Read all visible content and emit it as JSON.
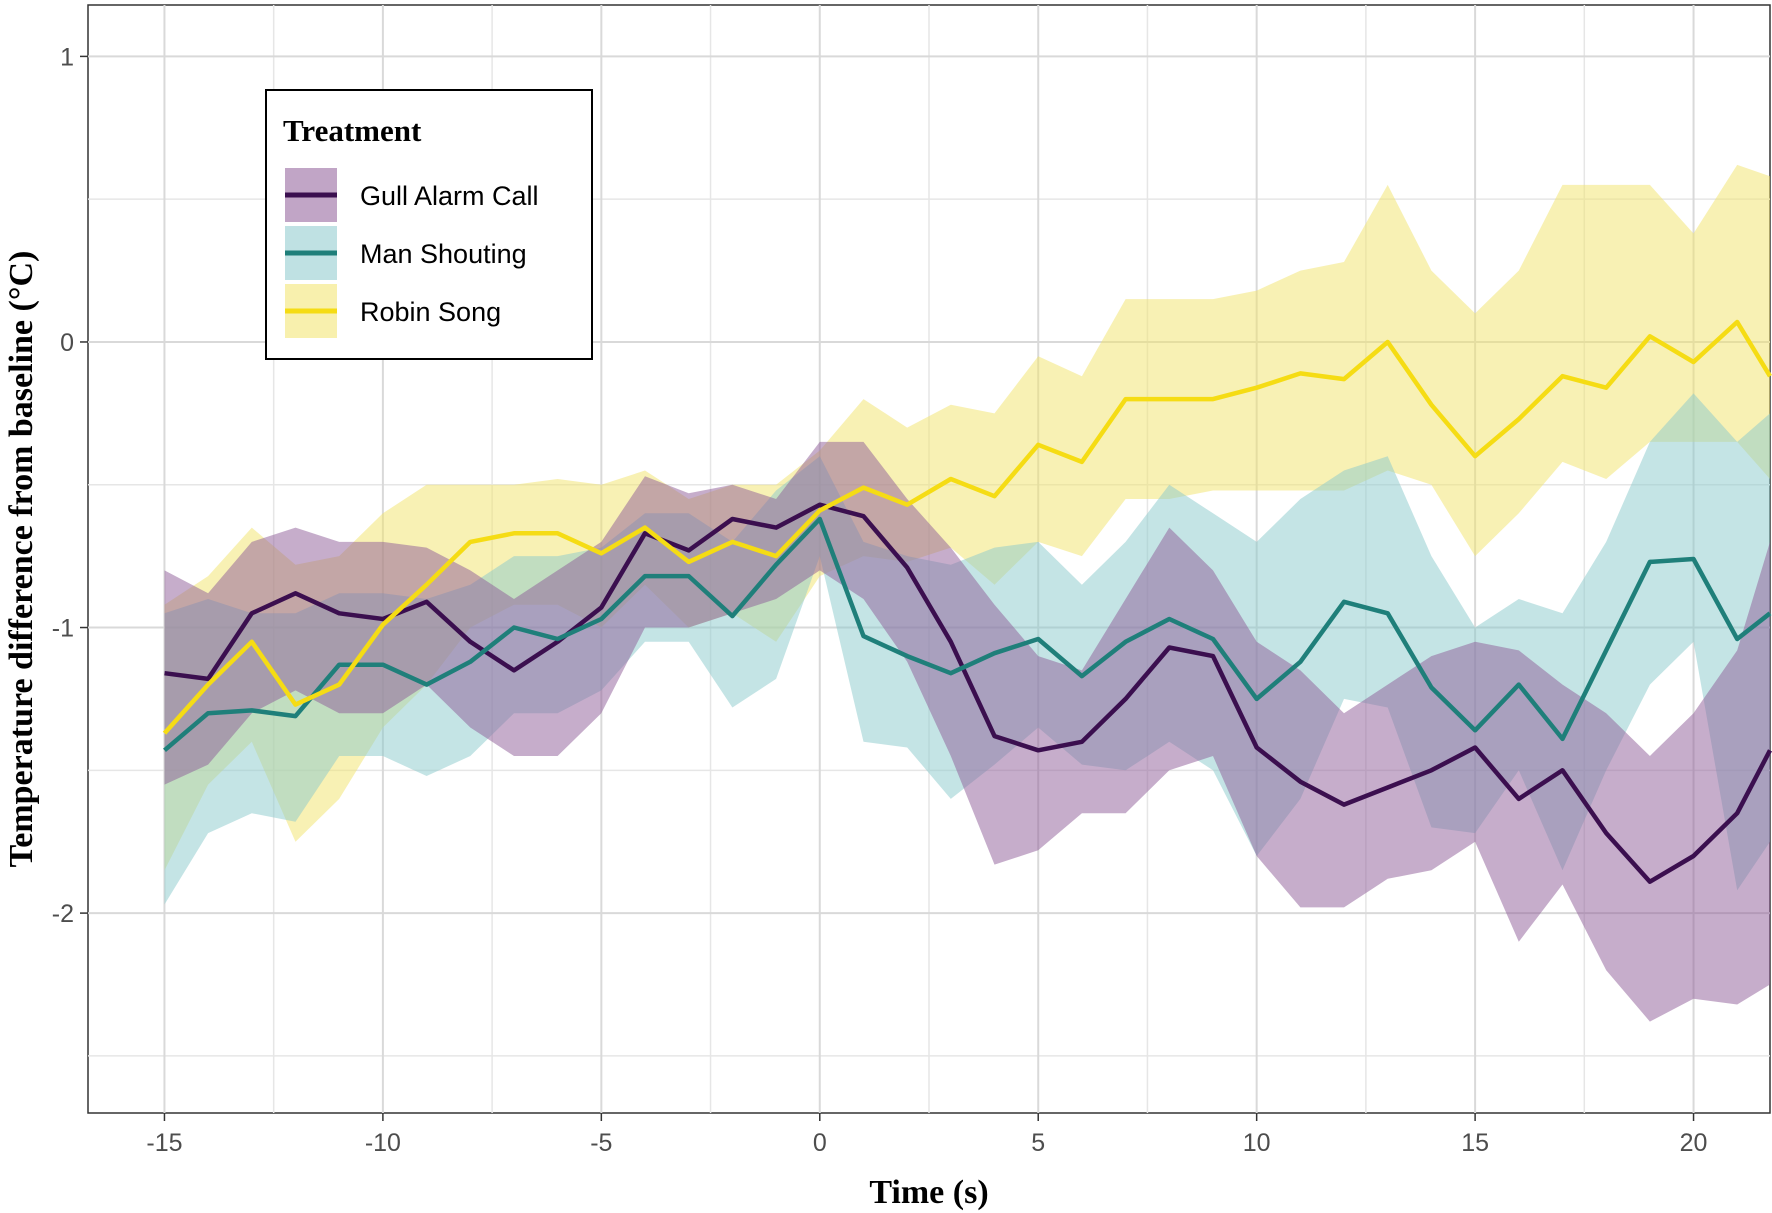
{
  "chart_data": {
    "type": "line",
    "title": "",
    "xlabel": "Time (s)",
    "ylabel": "Temperature difference from baseline (°C)",
    "xlim": [
      -16.75,
      21.75
    ],
    "ylim": [
      -2.7,
      1.18
    ],
    "xticks": [
      -15,
      -10,
      -5,
      0,
      5,
      10,
      15,
      20
    ],
    "xtick_labels": [
      "-15",
      "-10",
      "-5",
      "0",
      "5",
      "10",
      "15",
      "20"
    ],
    "yticks": [
      1,
      0,
      -1,
      -2
    ],
    "ytick_labels": [
      "1",
      "0",
      "-1",
      "-2"
    ],
    "grid": true,
    "legend": {
      "title": "Treatment",
      "position": "top-left"
    },
    "x": [
      -15,
      -14,
      -13,
      -12,
      -11,
      -10,
      -9,
      -8,
      -7,
      -6,
      -5,
      -4,
      -3,
      -2,
      -1,
      0,
      1,
      2,
      3,
      4,
      5,
      6,
      7,
      8,
      9,
      10,
      11,
      12,
      13,
      14,
      15,
      16,
      17,
      18,
      19,
      20,
      21,
      21.75
    ],
    "series": [
      {
        "name": "Gull Alarm Call",
        "color": "#3b0f4f",
        "fill_color": "#8e5b98",
        "values": [
          -1.16,
          -1.18,
          -0.95,
          -0.88,
          -0.95,
          -0.97,
          -0.91,
          -1.05,
          -1.15,
          -1.05,
          -0.93,
          -0.67,
          -0.73,
          -0.62,
          -0.65,
          -0.57,
          -0.61,
          -0.79,
          -1.05,
          -1.38,
          -1.43,
          -1.4,
          -1.25,
          -1.07,
          -1.1,
          -1.42,
          -1.54,
          -1.62,
          -1.56,
          -1.5,
          -1.42,
          -1.6,
          -1.5,
          -1.72,
          -1.89,
          -1.8,
          -1.65,
          -1.43
        ],
        "lower": [
          -1.55,
          -1.48,
          -1.3,
          -1.22,
          -1.3,
          -1.3,
          -1.2,
          -1.35,
          -1.45,
          -1.45,
          -1.3,
          -1.0,
          -1.0,
          -0.95,
          -0.9,
          -0.8,
          -0.9,
          -1.12,
          -1.45,
          -1.83,
          -1.78,
          -1.65,
          -1.65,
          -1.5,
          -1.45,
          -1.8,
          -1.98,
          -1.98,
          -1.88,
          -1.85,
          -1.75,
          -2.1,
          -1.9,
          -2.2,
          -2.38,
          -2.3,
          -2.32,
          -2.25
        ],
        "upper": [
          -0.8,
          -0.88,
          -0.7,
          -0.65,
          -0.7,
          -0.7,
          -0.72,
          -0.8,
          -0.9,
          -0.8,
          -0.7,
          -0.47,
          -0.53,
          -0.5,
          -0.55,
          -0.35,
          -0.35,
          -0.55,
          -0.72,
          -0.92,
          -1.1,
          -1.15,
          -0.9,
          -0.65,
          -0.8,
          -1.05,
          -1.15,
          -1.3,
          -1.2,
          -1.1,
          -1.05,
          -1.08,
          -1.2,
          -1.3,
          -1.45,
          -1.3,
          -1.08,
          -0.7
        ]
      },
      {
        "name": "Man Shouting",
        "color": "#1f7f7a",
        "fill_color": "#8ac9cc",
        "values": [
          -1.43,
          -1.3,
          -1.29,
          -1.31,
          -1.13,
          -1.13,
          -1.2,
          -1.12,
          -1.0,
          -1.04,
          -0.97,
          -0.82,
          -0.82,
          -0.96,
          -0.78,
          -0.62,
          -1.03,
          -1.1,
          -1.16,
          -1.09,
          -1.04,
          -1.17,
          -1.05,
          -0.97,
          -1.04,
          -1.25,
          -1.12,
          -0.91,
          -0.95,
          -1.21,
          -1.36,
          -1.2,
          -1.39,
          -1.08,
          -0.77,
          -0.76,
          -1.04,
          -0.95
        ],
        "lower": [
          -1.97,
          -1.72,
          -1.65,
          -1.68,
          -1.45,
          -1.45,
          -1.52,
          -1.45,
          -1.3,
          -1.3,
          -1.22,
          -1.05,
          -1.05,
          -1.28,
          -1.18,
          -0.75,
          -1.4,
          -1.42,
          -1.6,
          -1.48,
          -1.35,
          -1.48,
          -1.5,
          -1.4,
          -1.5,
          -1.8,
          -1.6,
          -1.25,
          -1.28,
          -1.7,
          -1.72,
          -1.5,
          -1.85,
          -1.5,
          -1.2,
          -1.05,
          -1.92,
          -1.75
        ],
        "upper": [
          -0.95,
          -0.9,
          -0.95,
          -0.95,
          -0.88,
          -0.88,
          -0.9,
          -0.85,
          -0.75,
          -0.75,
          -0.72,
          -0.6,
          -0.6,
          -0.7,
          -0.52,
          -0.4,
          -0.7,
          -0.75,
          -0.78,
          -0.72,
          -0.7,
          -0.85,
          -0.7,
          -0.5,
          -0.6,
          -0.7,
          -0.55,
          -0.45,
          -0.4,
          -0.75,
          -1.0,
          -0.9,
          -0.95,
          -0.7,
          -0.35,
          -0.18,
          -0.35,
          -0.25
        ]
      },
      {
        "name": "Robin Song",
        "color": "#f5dc14",
        "fill_color": "#f2e46a",
        "values": [
          -1.37,
          -1.2,
          -1.05,
          -1.27,
          -1.2,
          -0.99,
          -0.85,
          -0.7,
          -0.67,
          -0.67,
          -0.74,
          -0.65,
          -0.77,
          -0.7,
          -0.75,
          -0.59,
          -0.51,
          -0.57,
          -0.48,
          -0.54,
          -0.36,
          -0.42,
          -0.2,
          -0.2,
          -0.2,
          -0.16,
          -0.11,
          -0.13,
          0.0,
          -0.22,
          -0.4,
          -0.27,
          -0.12,
          -0.16,
          0.02,
          -0.07,
          0.07,
          -0.12
        ],
        "lower": [
          -1.85,
          -1.55,
          -1.4,
          -1.75,
          -1.6,
          -1.35,
          -1.2,
          -1.0,
          -0.92,
          -0.92,
          -1.0,
          -0.85,
          -1.0,
          -0.95,
          -1.05,
          -0.82,
          -0.75,
          -0.77,
          -0.72,
          -0.85,
          -0.7,
          -0.75,
          -0.55,
          -0.55,
          -0.52,
          -0.52,
          -0.52,
          -0.52,
          -0.45,
          -0.5,
          -0.75,
          -0.6,
          -0.42,
          -0.48,
          -0.35,
          -0.35,
          -0.35,
          -0.48
        ],
        "upper": [
          -0.92,
          -0.82,
          -0.65,
          -0.78,
          -0.75,
          -0.6,
          -0.5,
          -0.5,
          -0.5,
          -0.48,
          -0.5,
          -0.45,
          -0.55,
          -0.5,
          -0.5,
          -0.38,
          -0.2,
          -0.3,
          -0.22,
          -0.25,
          -0.05,
          -0.12,
          0.15,
          0.15,
          0.15,
          0.18,
          0.25,
          0.28,
          0.55,
          0.25,
          0.1,
          0.25,
          0.55,
          0.55,
          0.55,
          0.38,
          0.62,
          0.58
        ]
      }
    ]
  }
}
